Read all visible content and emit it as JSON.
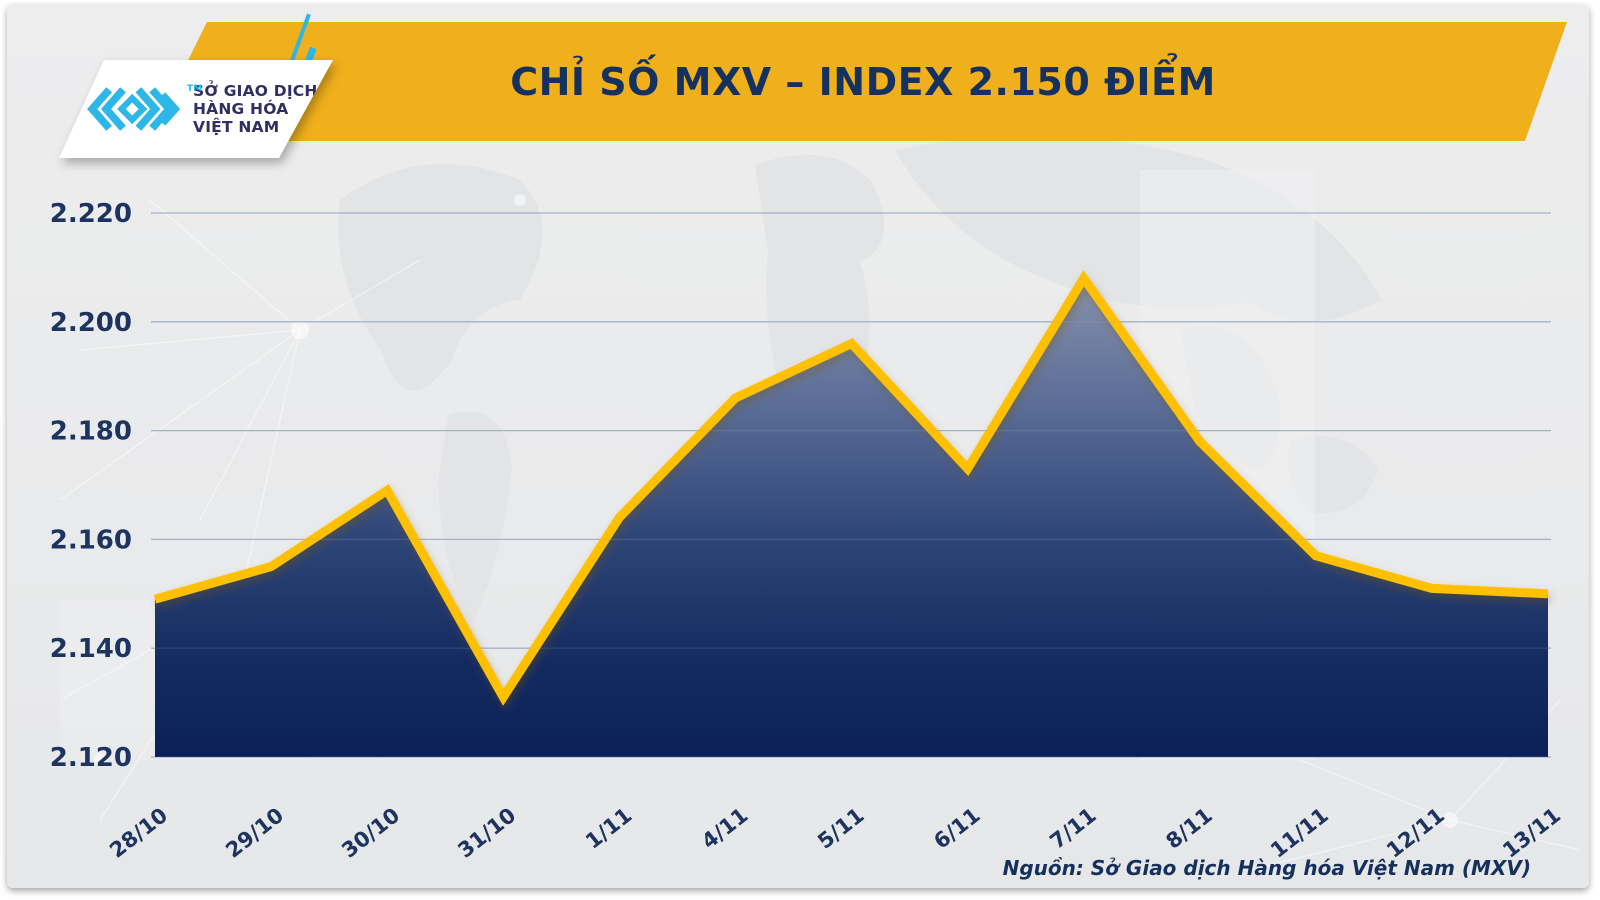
{
  "header": {
    "title": "CHỈ SỐ MXV – INDEX 2.150 ĐIỂM",
    "logo": {
      "line1": "SỞ GIAO DỊCH",
      "line2": "HÀNG HÓA",
      "line3": "VIỆT NAM",
      "trademark": "TM",
      "mark_icon": "mxv-chevrons-icon"
    }
  },
  "source_note": "Nguồn: Sở Giao dịch Hàng hóa Việt Nam (MXV)",
  "colors": {
    "banner_yellow": "#f0b01c",
    "line_yellow": "#ffc000",
    "logo_cyan": "#2db6e8",
    "text_navy": "#1d3460",
    "logo_text_indigo": "#332d66",
    "canvas_gray": "#e9eaeb",
    "gridline": "#a7b1c6",
    "fill_top": "#8a93ac",
    "fill_bottom": "#0a2057"
  },
  "chart_data": {
    "type": "area",
    "title": "CHỈ SỐ MXV – INDEX 2.150 ĐIỂM",
    "categories": [
      "28/10",
      "29/10",
      "30/10",
      "31/10",
      "1/11",
      "4/11",
      "5/11",
      "6/11",
      "7/11",
      "8/11",
      "11/11",
      "12/11",
      "13/11"
    ],
    "values": [
      2149,
      2155,
      2169,
      2131,
      2164,
      2186,
      2196,
      2173,
      2208,
      2178,
      2157,
      2151,
      2150
    ],
    "xlabel": "",
    "ylabel": "",
    "ylim": [
      2120,
      2220
    ],
    "y_ticks": [
      "2.120",
      "2.140",
      "2.160",
      "2.180",
      "2.200",
      "2.220"
    ],
    "grid": true,
    "legend": "none",
    "source": "Nguồn: Sở Giao dịch Hàng hóa Việt Nam (MXV)"
  }
}
